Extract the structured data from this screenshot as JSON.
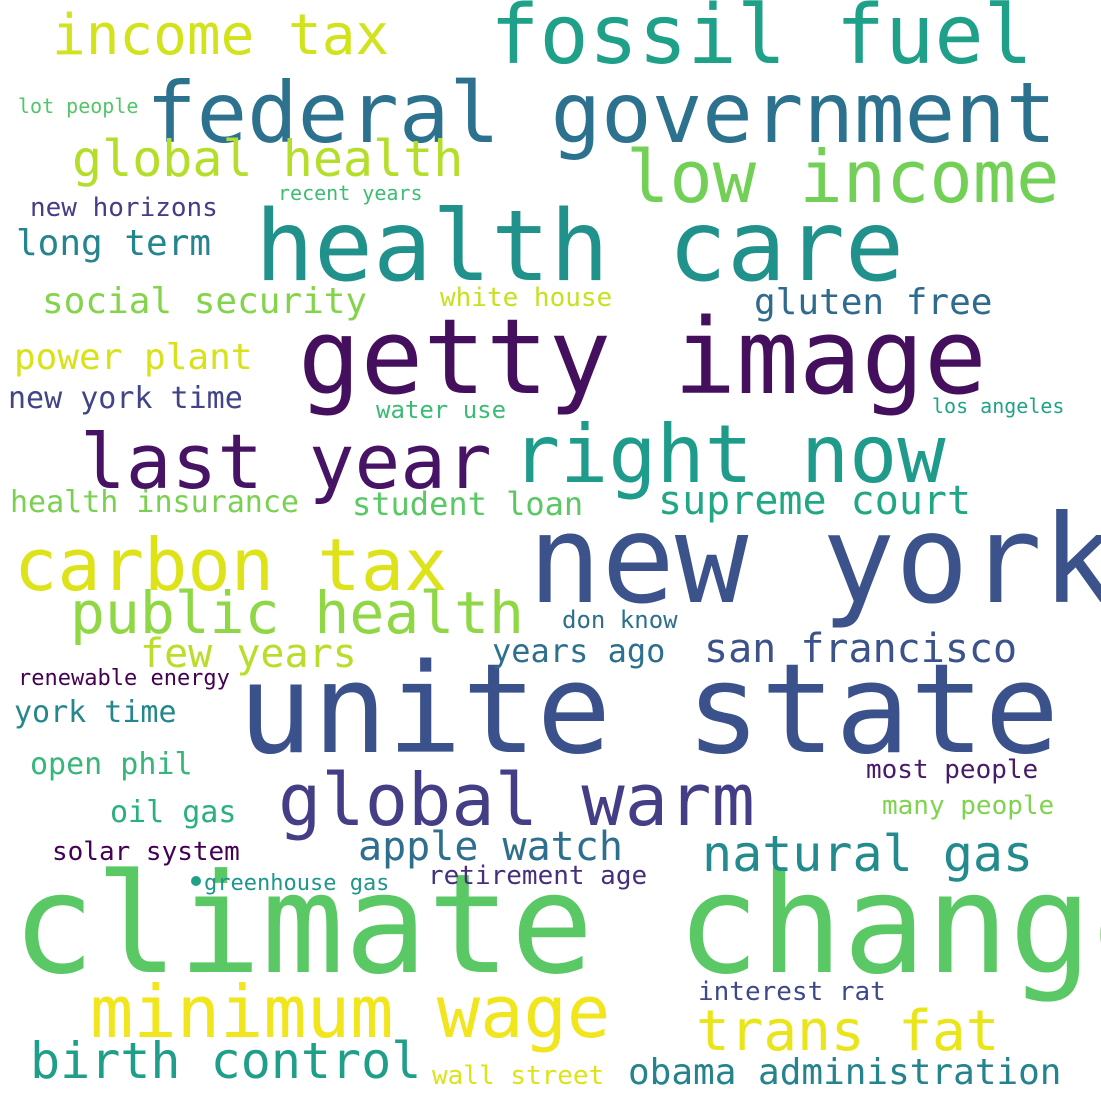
{
  "words": [
    {
      "text": "climate change",
      "color": "#5ac864"
    },
    {
      "text": "unite state",
      "color": "#3b518b"
    },
    {
      "text": "new york",
      "color": "#3b528b"
    },
    {
      "text": "getty image",
      "color": "#440f5c"
    },
    {
      "text": "health care",
      "color": "#21918c"
    },
    {
      "text": "federal government",
      "color": "#2c718e"
    },
    {
      "text": "fossil fuel",
      "color": "#1fa088"
    },
    {
      "text": "right now",
      "color": "#1e9b8a"
    },
    {
      "text": "last year",
      "color": "#471365"
    },
    {
      "text": "carbon tax",
      "color": "#dde318"
    },
    {
      "text": "global warm",
      "color": "#433e85"
    },
    {
      "text": "minimum wage",
      "color": "#f1e51d"
    },
    {
      "text": "low income",
      "color": "#73d056"
    },
    {
      "text": "income tax",
      "color": "#d2e21b"
    },
    {
      "text": "public health",
      "color": "#8fd744"
    },
    {
      "text": "trans fat",
      "color": "#eae51a"
    },
    {
      "text": "birth control",
      "color": "#1f9e89"
    },
    {
      "text": "natural gas",
      "color": "#238a8d"
    },
    {
      "text": "global health",
      "color": "#b5de2b"
    },
    {
      "text": "few years",
      "color": "#b8de29"
    },
    {
      "text": "apple watch",
      "color": "#2e6f8e"
    },
    {
      "text": "supreme court",
      "color": "#22a785"
    },
    {
      "text": "san francisco",
      "color": "#3b528b"
    },
    {
      "text": "obama administration",
      "color": "#25838e"
    },
    {
      "text": "long term",
      "color": "#25858e"
    },
    {
      "text": "social security",
      "color": "#84d44b"
    },
    {
      "text": "gluten free",
      "color": "#2f6b8e"
    },
    {
      "text": "power plant",
      "color": "#d8e219"
    },
    {
      "text": "student loan",
      "color": "#5ac864"
    },
    {
      "text": "years ago",
      "color": "#2d708e"
    },
    {
      "text": "health insurance",
      "color": "#7ad151"
    },
    {
      "text": "new york time",
      "color": "#414487"
    },
    {
      "text": "york time",
      "color": "#24878e"
    },
    {
      "text": "open phil",
      "color": "#35b779"
    },
    {
      "text": "oil gas",
      "color": "#2ab07f"
    },
    {
      "text": "solar system",
      "color": "#440154"
    },
    {
      "text": "most people",
      "color": "#481a6c"
    },
    {
      "text": "many people",
      "color": "#7fd34e"
    },
    {
      "text": "retirement age",
      "color": "#46307e"
    },
    {
      "text": "interest rat",
      "color": "#3e4989"
    },
    {
      "text": "wall street",
      "color": "#dde318"
    },
    {
      "text": "new horizons",
      "color": "#433e85"
    },
    {
      "text": "white house",
      "color": "#c8e020"
    },
    {
      "text": "water use",
      "color": "#3bbb75"
    },
    {
      "text": "don know",
      "color": "#2d708e"
    },
    {
      "text": "renewable energy",
      "color": "#440154"
    },
    {
      "text": "greenhouse gas",
      "color": "#1f968b"
    },
    {
      "text": "los angeles",
      "color": "#20a386"
    },
    {
      "text": "recent years",
      "color": "#3dbc74"
    },
    {
      "text": "lot people",
      "color": "#54c568"
    },
    {
      "text": "",
      "color": "#1fa187"
    }
  ]
}
